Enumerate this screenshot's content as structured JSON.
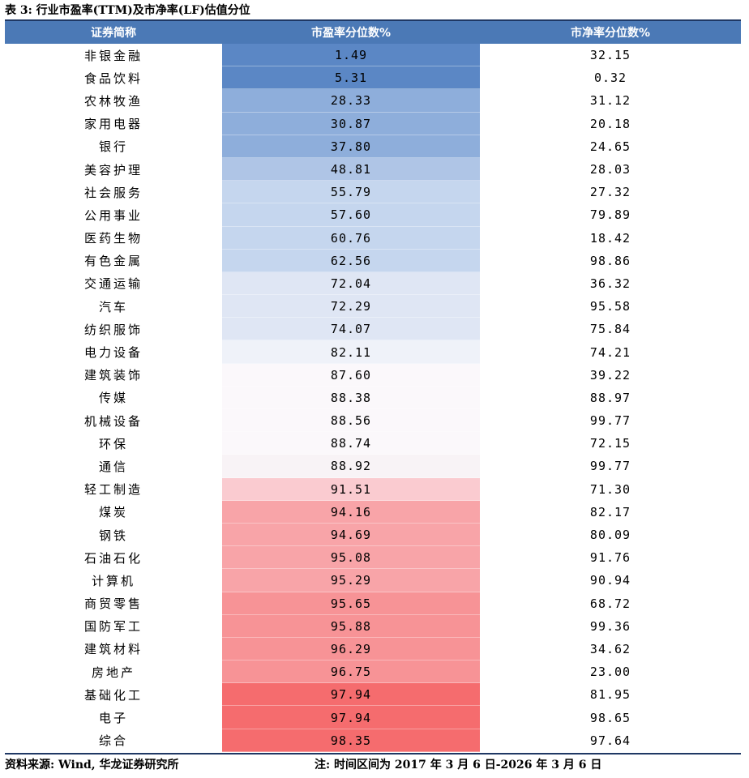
{
  "title": "表 3: 行业市盈率(TTM)及市净率(LF)估值分位",
  "headers": [
    "证券简称",
    "市盈率分位数%",
    "市净率分位数%"
  ],
  "rows": [
    {
      "name": "非银金融",
      "pe": "1.49",
      "pb": "32.15",
      "color": "#5b87c5"
    },
    {
      "name": "食品饮料",
      "pe": "5.31",
      "pb": "0.32",
      "color": "#5b87c5"
    },
    {
      "name": "农林牧渔",
      "pe": "28.33",
      "pb": "31.12",
      "color": "#8eaedb"
    },
    {
      "name": "家用电器",
      "pe": "30.87",
      "pb": "20.18",
      "color": "#8eaedb"
    },
    {
      "name": "银行",
      "pe": "37.80",
      "pb": "24.65",
      "color": "#8eaedb"
    },
    {
      "name": "美容护理",
      "pe": "48.81",
      "pb": "28.03",
      "color": "#afc5e6"
    },
    {
      "name": "社会服务",
      "pe": "55.79",
      "pb": "27.32",
      "color": "#c5d6ee"
    },
    {
      "name": "公用事业",
      "pe": "57.60",
      "pb": "79.89",
      "color": "#c5d6ee"
    },
    {
      "name": "医药生物",
      "pe": "60.76",
      "pb": "18.42",
      "color": "#c5d6ee"
    },
    {
      "name": "有色金属",
      "pe": "62.56",
      "pb": "98.86",
      "color": "#c5d6ee"
    },
    {
      "name": "交通运输",
      "pe": "72.04",
      "pb": "36.32",
      "color": "#dfe6f4"
    },
    {
      "name": "汽车",
      "pe": "72.29",
      "pb": "95.58",
      "color": "#dfe6f4"
    },
    {
      "name": "纺织服饰",
      "pe": "74.07",
      "pb": "75.84",
      "color": "#dfe6f4"
    },
    {
      "name": "电力设备",
      "pe": "82.11",
      "pb": "74.21",
      "color": "#eff2f9"
    },
    {
      "name": "建筑装饰",
      "pe": "87.60",
      "pb": "39.22",
      "color": "#fbf8fb"
    },
    {
      "name": "传媒",
      "pe": "88.38",
      "pb": "88.97",
      "color": "#fbf8fb"
    },
    {
      "name": "机械设备",
      "pe": "88.56",
      "pb": "99.77",
      "color": "#fbf8fb"
    },
    {
      "name": "环保",
      "pe": "88.74",
      "pb": "72.15",
      "color": "#fbf8fb"
    },
    {
      "name": "通信",
      "pe": "88.92",
      "pb": "99.77",
      "color": "#f8f3f6"
    },
    {
      "name": "轻工制造",
      "pe": "91.51",
      "pb": "71.30",
      "color": "#facbd0"
    },
    {
      "name": "煤炭",
      "pe": "94.16",
      "pb": "82.17",
      "color": "#f8a4a8"
    },
    {
      "name": "钢铁",
      "pe": "94.69",
      "pb": "80.09",
      "color": "#f8a4a8"
    },
    {
      "name": "石油石化",
      "pe": "95.08",
      "pb": "91.76",
      "color": "#f8a4a8"
    },
    {
      "name": "计算机",
      "pe": "95.29",
      "pb": "90.94",
      "color": "#f8a4a8"
    },
    {
      "name": "商贸零售",
      "pe": "95.65",
      "pb": "68.72",
      "color": "#f79396"
    },
    {
      "name": "国防军工",
      "pe": "95.88",
      "pb": "99.36",
      "color": "#f79396"
    },
    {
      "name": "建筑材料",
      "pe": "96.29",
      "pb": "34.62",
      "color": "#f79396"
    },
    {
      "name": "房地产",
      "pe": "96.75",
      "pb": "23.00",
      "color": "#f79396"
    },
    {
      "name": "基础化工",
      "pe": "97.94",
      "pb": "81.95",
      "color": "#f56c6e"
    },
    {
      "name": "电子",
      "pe": "97.94",
      "pb": "98.65",
      "color": "#f56c6e"
    },
    {
      "name": "综合",
      "pe": "98.35",
      "pb": "97.64",
      "color": "#f56c6e"
    }
  ],
  "source": "资料来源: Wind, 华龙证券研究所",
  "note": "注: 时间区间为 2017 年 3 月 6 日-2026 年 3 月 6 日"
}
